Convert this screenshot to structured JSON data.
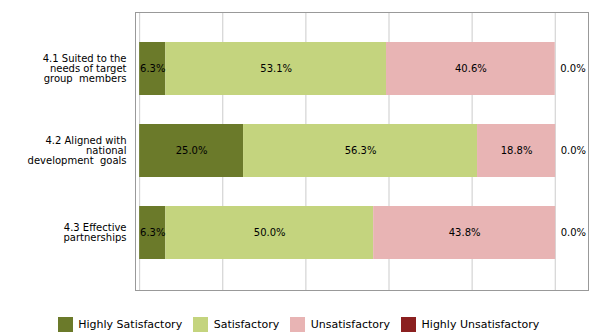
{
  "chart_data": {
    "type": "bar",
    "orientation": "horizontal",
    "stacked": true,
    "categories": [
      "4.1 Suited to the\nneeds of target\ngroup  members",
      "4.2 Aligned with\nnational\ndevelopment  goals",
      "4.3 Effective\npartnerships"
    ],
    "series": [
      {
        "name": "Highly Satisfactory",
        "color": "#6b7a2a",
        "values": [
          6.3,
          25.0,
          6.3
        ],
        "value_labels": [
          "6.3%",
          "25.0%",
          "6.3%"
        ]
      },
      {
        "name": "Satisfactory",
        "color": "#c4d47e",
        "values": [
          53.1,
          56.3,
          50.0
        ],
        "value_labels": [
          "53.1%",
          "56.3%",
          "50.0%"
        ]
      },
      {
        "name": "Unsatisfactory",
        "color": "#e8b4b4",
        "values": [
          40.6,
          18.8,
          43.8
        ],
        "value_labels": [
          "40.6%",
          "18.8%",
          "43.8%"
        ]
      },
      {
        "name": "Highly Unsatisfactory",
        "color": "#8b2020",
        "values": [
          0.0,
          0.0,
          0.0
        ],
        "value_labels": [
          "0.0%",
          "0.0%",
          "0.0%"
        ]
      }
    ],
    "xlim": [
      -1,
      108
    ],
    "xticks": [
      0,
      20,
      40,
      60,
      80,
      100
    ],
    "grid": true,
    "legend": "bottom",
    "data_labels": true,
    "tick_labels": "y"
  }
}
